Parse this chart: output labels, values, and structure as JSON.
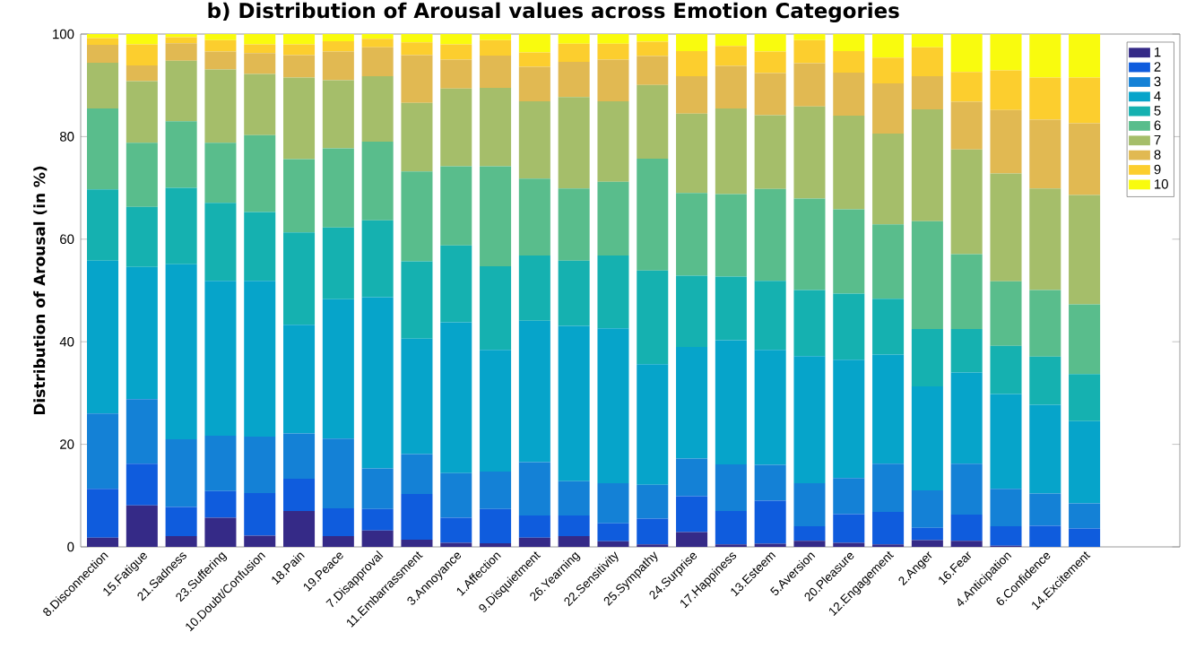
{
  "chart_data": {
    "type": "bar",
    "stacked": true,
    "title": "b) Distribution of Arousal values across Emotion Categories",
    "ylabel": "Distribution of Arousal (in %)",
    "categories": [
      "8.Disconnection",
      "15.Fatigue",
      "21.Sadness",
      "23.Suffering",
      "10.Doubt/Confusion",
      "18.Pain",
      "19.Peace",
      "7.Disapproval",
      "11.Embarrassment",
      "3.Annoyance",
      "1.Affection",
      "9.Disquietment",
      "26.Yearning",
      "22.Sensitivity",
      "25.Sympathy",
      "24.Surprise",
      "17.Happiness",
      "13.Esteem",
      "5.Aversion",
      "20.Pleasure",
      "12.Engagement",
      "2.Anger",
      "16.Fear",
      "4.Anticipation",
      "6.Confidence",
      "14.Excitement"
    ],
    "ylim": [
      0,
      100
    ],
    "yticks": [
      0,
      20,
      40,
      60,
      80,
      100
    ],
    "legend": "top right",
    "series": [
      {
        "name": "1",
        "color": "#352a87",
        "values": [
          1.8,
          8.1,
          2.1,
          5.7,
          2.2,
          7.0,
          2.1,
          3.2,
          1.4,
          0.8,
          0.7,
          1.8,
          2.1,
          1.1,
          0.5,
          2.9,
          0.5,
          0.6,
          1.2,
          0.8,
          0.5,
          1.3,
          1.2,
          0.2,
          0,
          0
        ]
      },
      {
        "name": "2",
        "color": "#0f5cdd",
        "values": [
          9.5,
          8.1,
          5.7,
          5.2,
          8.3,
          6.3,
          5.4,
          4.2,
          8.9,
          4.9,
          6.7,
          4.3,
          4.0,
          3.5,
          5.0,
          7.0,
          6.5,
          8.4,
          2.8,
          5.6,
          6.3,
          2.4,
          5.1,
          3.8,
          4.1,
          3.6
        ]
      },
      {
        "name": "3",
        "color": "#1481d6",
        "values": [
          14.7,
          12.6,
          13.2,
          10.8,
          11.0,
          8.8,
          13.6,
          7.9,
          7.8,
          8.7,
          7.3,
          10.4,
          6.7,
          7.8,
          6.6,
          7.3,
          9.1,
          7.0,
          8.4,
          7.0,
          9.4,
          7.3,
          9.9,
          7.3,
          6.3,
          4.9
        ]
      },
      {
        "name": "4",
        "color": "#06a4ca",
        "values": [
          29.8,
          25.8,
          34.1,
          30.2,
          30.4,
          21.2,
          27.2,
          33.4,
          22.5,
          29.4,
          23.7,
          27.6,
          30.3,
          30.2,
          23.5,
          21.8,
          24.2,
          22.4,
          24.8,
          23.1,
          21.3,
          20.3,
          17.8,
          18.5,
          17.3,
          16.0
        ]
      },
      {
        "name": "5",
        "color": "#15b1b0",
        "values": [
          13.9,
          11.7,
          14.9,
          15.2,
          13.4,
          18.0,
          14.0,
          15.0,
          15.1,
          15.0,
          16.3,
          12.7,
          12.7,
          14.2,
          18.3,
          13.9,
          12.4,
          13.5,
          12.9,
          12.9,
          10.9,
          11.2,
          8.5,
          9.4,
          9.4,
          9.2
        ]
      },
      {
        "name": "6",
        "color": "#59bd8c",
        "values": [
          15.8,
          12.5,
          13.0,
          11.7,
          15.0,
          14.3,
          15.4,
          15.3,
          17.5,
          15.4,
          19.5,
          15.0,
          14.1,
          14.4,
          21.8,
          16.1,
          16.1,
          17.9,
          17.8,
          16.4,
          14.5,
          21.0,
          14.6,
          12.6,
          13.0,
          13.6
        ]
      },
      {
        "name": "7",
        "color": "#a5be6a",
        "values": [
          8.9,
          12.0,
          11.8,
          14.3,
          11.9,
          15.9,
          13.3,
          12.8,
          13.4,
          15.2,
          15.3,
          15.1,
          17.8,
          15.7,
          14.4,
          15.5,
          16.7,
          14.4,
          18.0,
          18.3,
          17.7,
          21.8,
          20.4,
          21.0,
          19.8,
          21.3
        ]
      },
      {
        "name": "8",
        "color": "#e1b952",
        "values": [
          3.5,
          3.1,
          3.4,
          3.5,
          4.1,
          4.4,
          5.6,
          5.6,
          9.3,
          5.6,
          6.3,
          6.7,
          6.9,
          8.1,
          5.6,
          7.3,
          8.3,
          8.2,
          8.4,
          8.4,
          9.8,
          6.5,
          9.3,
          12.4,
          13.4,
          14.0
        ]
      },
      {
        "name": "9",
        "color": "#fcce2e",
        "values": [
          1.3,
          4.1,
          1.2,
          2.2,
          1.7,
          2.1,
          2.0,
          1.7,
          2.5,
          3.0,
          3.0,
          2.8,
          3.5,
          3.1,
          2.8,
          4.9,
          3.9,
          4.2,
          4.5,
          4.2,
          5.0,
          5.6,
          5.8,
          7.7,
          8.2,
          8.9
        ]
      },
      {
        "name": "10",
        "color": "#f9fb0e",
        "values": [
          0.8,
          2.0,
          0.6,
          1.2,
          2.0,
          2.0,
          1.4,
          0.9,
          1.6,
          2.0,
          1.2,
          3.6,
          1.9,
          1.9,
          1.5,
          3.3,
          2.3,
          3.4,
          1.2,
          3.3,
          4.6,
          2.6,
          7.4,
          7.1,
          8.5,
          8.5
        ]
      }
    ]
  }
}
